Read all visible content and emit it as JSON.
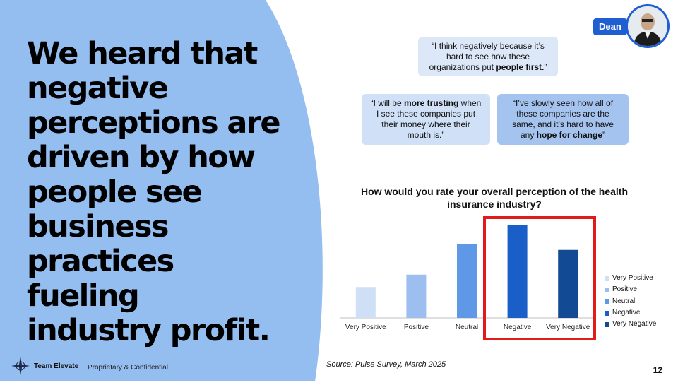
{
  "headline": "We heard that negative perceptions are driven by how people see business practices fueling industry profit.",
  "persona": {
    "name": "Dean"
  },
  "quotes": [
    {
      "before": "“I think negatively because it’s hard to see how these organizations put ",
      "bold": "people first.",
      "after": "”"
    },
    {
      "before": "“I will be ",
      "bold": "more trusting",
      "after": " when I see these companies put their money where their mouth is.”"
    },
    {
      "before": "“I’ve slowly seen how all of these companies are the same, and it’s hard to have any ",
      "bold": "hope for change",
      "after": "”"
    }
  ],
  "footer": {
    "team": "Team Elevate",
    "confidential": "Proprietary & Confidential",
    "page_number": "12",
    "source": "Source: Pulse Survey, March 2025"
  },
  "chart_data": {
    "type": "bar",
    "title": "How would you rate your overall perception of the health insurance industry?",
    "categories": [
      "Very Positive",
      "Positive",
      "Neutral",
      "Negative",
      "Very Negative"
    ],
    "values": [
      10,
      14,
      24,
      30,
      22
    ],
    "colors": [
      "#cfdff5",
      "#9dbff0",
      "#5e98e6",
      "#1a5fc8",
      "#134a94"
    ],
    "ylim": [
      0,
      32
    ],
    "legend_position": "right",
    "highlight": [
      "Negative",
      "Very Negative"
    ],
    "highlight_color": "#e01b1b"
  }
}
